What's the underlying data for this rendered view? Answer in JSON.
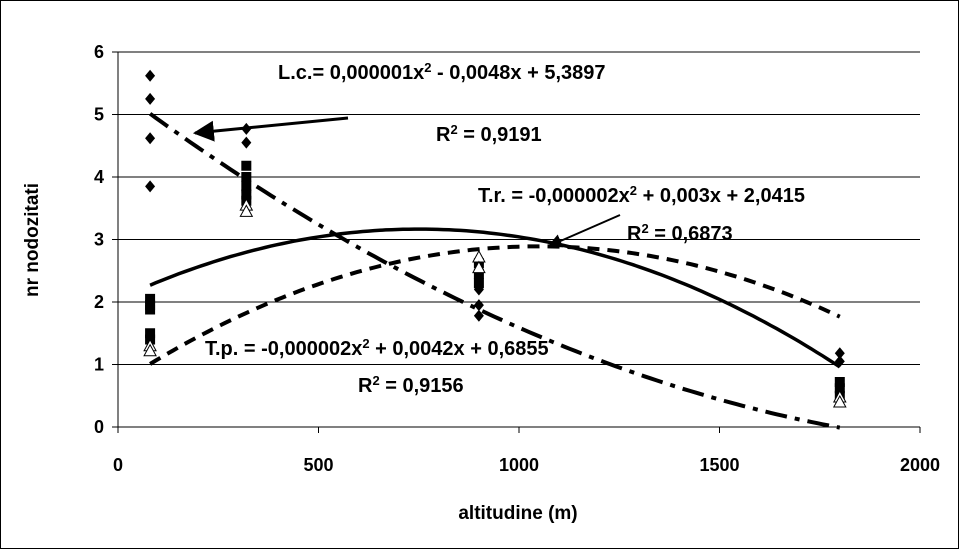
{
  "chart_data": {
    "type": "scatter",
    "xlabel": "altitudine (m)",
    "ylabel": "nr nodozitati",
    "xlim": [
      0,
      2000
    ],
    "ylim": [
      0,
      6
    ],
    "xticks": [
      0,
      500,
      1000,
      1500,
      2000
    ],
    "yticks": [
      0,
      1,
      2,
      3,
      4,
      5,
      6
    ],
    "grid": "horizontal",
    "series": [
      {
        "key": "lc",
        "marker": "diamond",
        "points": [
          [
            80,
            5.62
          ],
          [
            80,
            5.25
          ],
          [
            80,
            4.62
          ],
          [
            80,
            3.85
          ],
          [
            320,
            4.77
          ],
          [
            320,
            4.55
          ],
          [
            320,
            3.95
          ],
          [
            320,
            3.75
          ],
          [
            320,
            3.6
          ],
          [
            320,
            3.5
          ],
          [
            900,
            2.62
          ],
          [
            900,
            2.2
          ],
          [
            900,
            1.95
          ],
          [
            900,
            1.78
          ],
          [
            1800,
            1.18
          ],
          [
            1800,
            1.05
          ]
        ],
        "trend": {
          "a": 1e-06,
          "b": -0.0048,
          "c": 5.3897
        },
        "trend_style": "dash-dot"
      },
      {
        "key": "tr",
        "marker": "square",
        "points": [
          [
            80,
            2.05
          ],
          [
            80,
            1.95
          ],
          [
            80,
            1.88
          ],
          [
            80,
            1.5
          ],
          [
            80,
            1.4
          ],
          [
            320,
            4.18
          ],
          [
            320,
            4.0
          ],
          [
            320,
            3.85
          ],
          [
            320,
            3.72
          ],
          [
            320,
            3.62
          ],
          [
            900,
            2.62
          ],
          [
            900,
            2.45
          ],
          [
            900,
            2.3
          ],
          [
            1800,
            0.72
          ],
          [
            1800,
            0.62
          ],
          [
            1800,
            0.5
          ]
        ],
        "trend": {
          "a": -2e-06,
          "b": 0.003,
          "c": 2.0415
        },
        "trend_style": "solid"
      },
      {
        "key": "tp",
        "marker": "triangle",
        "points": [
          [
            80,
            1.3
          ],
          [
            80,
            1.22
          ],
          [
            320,
            3.55
          ],
          [
            320,
            3.45
          ],
          [
            900,
            2.72
          ],
          [
            900,
            2.55
          ],
          [
            1800,
            0.48
          ],
          [
            1800,
            0.4
          ]
        ],
        "trend": {
          "a": -2e-06,
          "b": 0.0042,
          "c": 0.6855
        },
        "trend_style": "dashed"
      }
    ],
    "annotations": [
      {
        "key": "lc_eq",
        "text": "L.c.= 0,000001x² - 0,0048x + 5,3897"
      },
      {
        "key": "lc_r2",
        "text": "R² = 0,9191"
      },
      {
        "key": "tr_eq",
        "text": "T.r. = -0,000002x² + 0,003x + 2,0415"
      },
      {
        "key": "tr_r2",
        "text": "R² = 0,6873"
      },
      {
        "key": "tp_eq",
        "text": "T.p. = -0,000002x² + 0,0042x + 0,6855"
      },
      {
        "key": "tp_r2",
        "text": "R² = 0,9156"
      }
    ],
    "colors": {
      "marks": "#000000",
      "grid": "#000000",
      "background": "#ffffff"
    }
  }
}
